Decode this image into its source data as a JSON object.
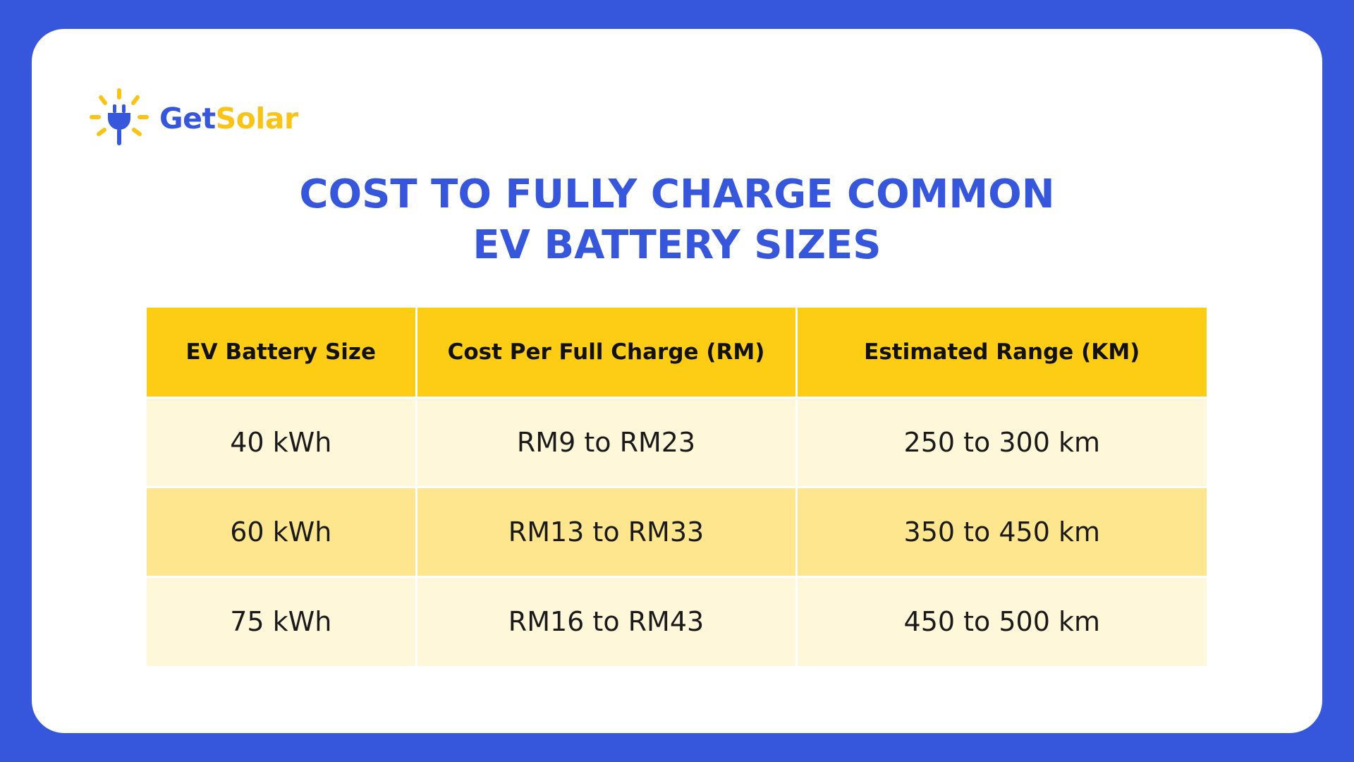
{
  "brand": {
    "icon": "solar-plug-icon",
    "name_part1": "Get",
    "name_part2": "Solar",
    "colors": {
      "blue": "#3657DB",
      "yellow": "#F9C416"
    }
  },
  "title": {
    "line1": "COST TO FULLY CHARGE COMMON",
    "line2": "EV BATTERY SIZES"
  },
  "table": {
    "headers": [
      "EV Battery Size",
      "Cost Per Full Charge (RM)",
      "Estimated Range (KM)"
    ],
    "rows": [
      [
        "40 kWh",
        "RM9 to RM23",
        "250 to 300 km"
      ],
      [
        "60 kWh",
        "RM13 to RM33",
        "350 to 450 km"
      ],
      [
        "75 kWh",
        "RM16 to RM43",
        "450 to 500 km"
      ]
    ],
    "colors": {
      "header": "#FDCC14",
      "row_light": "#FFF7DA",
      "row_dark": "#FEE68F"
    }
  },
  "background_color": "#3657DB"
}
